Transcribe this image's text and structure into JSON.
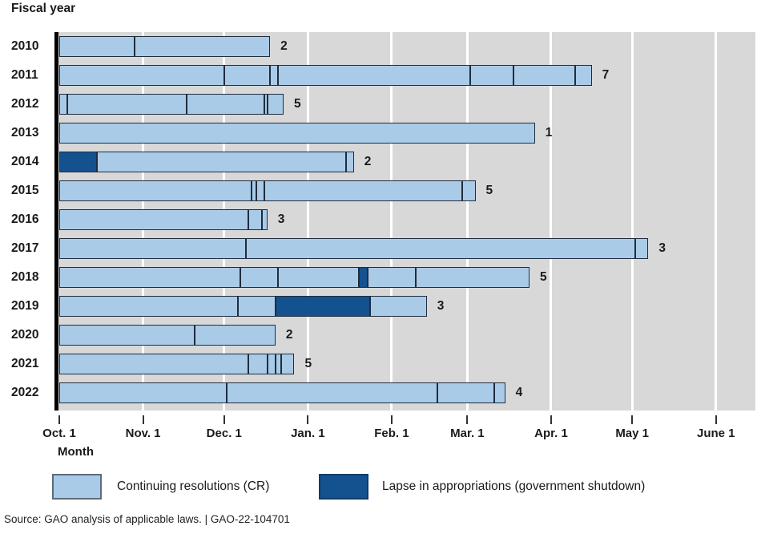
{
  "title": "Fiscal year",
  "axis": {
    "label": "Month",
    "months": [
      {
        "label": "Oct. 1",
        "day": 0
      },
      {
        "label": "Nov. 1",
        "day": 31
      },
      {
        "label": "Dec. 1",
        "day": 61
      },
      {
        "label": "Jan. 1",
        "day": 92
      },
      {
        "label": "Feb. 1",
        "day": 123
      },
      {
        "label": "Mar. 1",
        "day": 151
      },
      {
        "label": "Apr. 1",
        "day": 182
      },
      {
        "label": "May 1",
        "day": 212
      },
      {
        "label": "June 1",
        "day": 243
      }
    ]
  },
  "legend": {
    "cr_label": "Continuing resolutions (CR)",
    "lapse_label": "Lapse in appropriations (government shutdown)"
  },
  "source": "Source: GAO analysis of applicable laws.  |  GAO-22-104701",
  "colors": {
    "cr": "#a9cbe8",
    "lapse": "#14518f",
    "bar_border": "#1f2d3d",
    "plot_background": "#d8d8d8",
    "gridline": "#ffffff",
    "axis_line": "#000000"
  },
  "chart_data": {
    "type": "bar",
    "orientation": "horizontal-stacked-timeline",
    "unit": "days since Oct. 1 (start of fiscal year)",
    "xlabel": "Month",
    "ylabel": "Fiscal year",
    "x_range_days": [
      0,
      243
    ],
    "grid": true,
    "legend_position": "bottom",
    "series_types": [
      "cr",
      "lapse"
    ],
    "rows": [
      {
        "year": "2010",
        "count": 2,
        "segments": [
          {
            "type": "cr",
            "start": 0,
            "end": 28
          },
          {
            "type": "cr",
            "start": 28,
            "end": 78
          }
        ]
      },
      {
        "year": "2011",
        "count": 7,
        "segments": [
          {
            "type": "cr",
            "start": 0,
            "end": 61
          },
          {
            "type": "cr",
            "start": 61,
            "end": 78
          },
          {
            "type": "cr",
            "start": 78,
            "end": 81
          },
          {
            "type": "cr",
            "start": 81,
            "end": 152
          },
          {
            "type": "cr",
            "start": 152,
            "end": 168
          },
          {
            "type": "cr",
            "start": 168,
            "end": 191
          },
          {
            "type": "cr",
            "start": 191,
            "end": 197
          }
        ]
      },
      {
        "year": "2012",
        "count": 5,
        "segments": [
          {
            "type": "cr",
            "start": 0,
            "end": 3
          },
          {
            "type": "cr",
            "start": 3,
            "end": 47
          },
          {
            "type": "cr",
            "start": 47,
            "end": 76
          },
          {
            "type": "cr",
            "start": 76,
            "end": 77
          },
          {
            "type": "cr",
            "start": 77,
            "end": 83
          }
        ]
      },
      {
        "year": "2013",
        "count": 1,
        "segments": [
          {
            "type": "cr",
            "start": 0,
            "end": 176
          }
        ]
      },
      {
        "year": "2014",
        "count": 2,
        "segments": [
          {
            "type": "lapse",
            "start": 0,
            "end": 14
          },
          {
            "type": "cr",
            "start": 14,
            "end": 106
          },
          {
            "type": "cr",
            "start": 106,
            "end": 109
          }
        ]
      },
      {
        "year": "2015",
        "count": 5,
        "segments": [
          {
            "type": "cr",
            "start": 0,
            "end": 71
          },
          {
            "type": "cr",
            "start": 71,
            "end": 73
          },
          {
            "type": "cr",
            "start": 73,
            "end": 76
          },
          {
            "type": "cr",
            "start": 76,
            "end": 149
          },
          {
            "type": "cr",
            "start": 149,
            "end": 154
          }
        ]
      },
      {
        "year": "2016",
        "count": 3,
        "segments": [
          {
            "type": "cr",
            "start": 0,
            "end": 70
          },
          {
            "type": "cr",
            "start": 70,
            "end": 75
          },
          {
            "type": "cr",
            "start": 75,
            "end": 77
          }
        ]
      },
      {
        "year": "2017",
        "count": 3,
        "segments": [
          {
            "type": "cr",
            "start": 0,
            "end": 69
          },
          {
            "type": "cr",
            "start": 69,
            "end": 213
          },
          {
            "type": "cr",
            "start": 213,
            "end": 218
          }
        ]
      },
      {
        "year": "2018",
        "count": 5,
        "segments": [
          {
            "type": "cr",
            "start": 0,
            "end": 67
          },
          {
            "type": "cr",
            "start": 67,
            "end": 81
          },
          {
            "type": "cr",
            "start": 81,
            "end": 111
          },
          {
            "type": "lapse",
            "start": 111,
            "end": 114
          },
          {
            "type": "cr",
            "start": 114,
            "end": 132
          },
          {
            "type": "cr",
            "start": 132,
            "end": 174
          }
        ]
      },
      {
        "year": "2019",
        "count": 3,
        "segments": [
          {
            "type": "cr",
            "start": 0,
            "end": 66
          },
          {
            "type": "cr",
            "start": 66,
            "end": 80
          },
          {
            "type": "lapse",
            "start": 80,
            "end": 115
          },
          {
            "type": "cr",
            "start": 115,
            "end": 136
          }
        ]
      },
      {
        "year": "2020",
        "count": 2,
        "segments": [
          {
            "type": "cr",
            "start": 0,
            "end": 50
          },
          {
            "type": "cr",
            "start": 50,
            "end": 80
          }
        ]
      },
      {
        "year": "2021",
        "count": 5,
        "segments": [
          {
            "type": "cr",
            "start": 0,
            "end": 70
          },
          {
            "type": "cr",
            "start": 70,
            "end": 77
          },
          {
            "type": "cr",
            "start": 77,
            "end": 80
          },
          {
            "type": "cr",
            "start": 80,
            "end": 82
          },
          {
            "type": "cr",
            "start": 82,
            "end": 87
          }
        ]
      },
      {
        "year": "2022",
        "count": 4,
        "segments": [
          {
            "type": "cr",
            "start": 0,
            "end": 62
          },
          {
            "type": "cr",
            "start": 62,
            "end": 140
          },
          {
            "type": "cr",
            "start": 140,
            "end": 161
          },
          {
            "type": "cr",
            "start": 161,
            "end": 165
          }
        ]
      }
    ]
  }
}
